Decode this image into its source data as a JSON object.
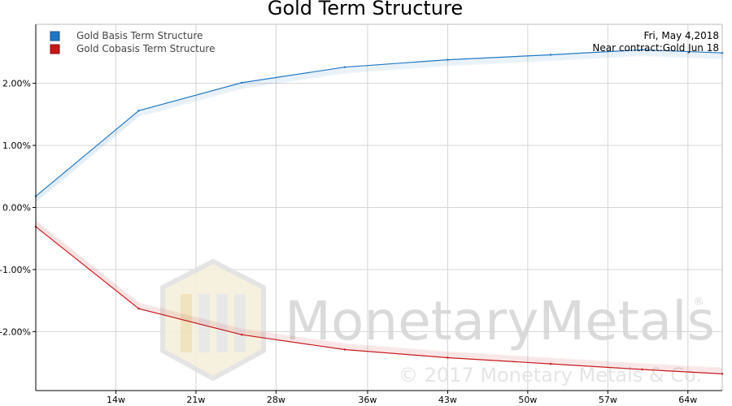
{
  "chart_data": {
    "type": "line",
    "title": "Gold Term Structure",
    "x_ticks": [
      "14w",
      "21w",
      "28w",
      "36w",
      "43w",
      "50w",
      "57w",
      "64w"
    ],
    "y_ticks": [
      "2.00%",
      "1.00%",
      "0.00%",
      "-1.00%",
      "-2.00%"
    ],
    "ylim": [
      -2.95,
      2.95
    ],
    "grid": true,
    "legend_position": "top-left",
    "series": [
      {
        "name": "Gold Basis Term Structure",
        "color": "#1f77c4",
        "x": [
          "7w",
          "16w",
          "25w",
          "34w",
          "43w",
          "52w",
          "60w",
          "67w"
        ],
        "values": [
          0.18,
          1.56,
          2.01,
          2.26,
          2.38,
          2.46,
          2.54,
          2.49
        ]
      },
      {
        "name": "Gold Cobasis Term Structure",
        "color": "#c8171a",
        "x": [
          "7w",
          "16w",
          "25w",
          "34w",
          "43w",
          "52w",
          "60w",
          "67w"
        ],
        "values": [
          -0.31,
          -1.63,
          -2.05,
          -2.29,
          -2.42,
          -2.52,
          -2.61,
          -2.68
        ]
      }
    ]
  },
  "info": {
    "date": "Fri, May 4,2018",
    "near_contract": "Near contract:Gold Jun 18"
  },
  "watermark": {
    "brand": "MonetaryMetals",
    "registered": "®",
    "copyright": "© 2017 Monetary Metals & Co."
  }
}
